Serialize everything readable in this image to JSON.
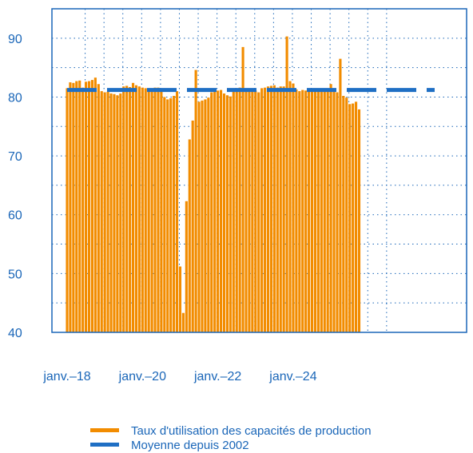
{
  "chart_data": {
    "type": "bar",
    "title": "",
    "xlabel": "",
    "ylabel": "",
    "ylim": [
      40,
      95
    ],
    "yticks": [
      40,
      50,
      60,
      70,
      80,
      90
    ],
    "x_start": "2018-01",
    "x_tick_labels": [
      "janv.–18",
      "janv.–20",
      "janv.–22",
      "janv.–24"
    ],
    "grid": true,
    "legend_position": "bottom",
    "series": [
      {
        "name": "Taux d'utilisation des capacités de production",
        "type": "bar",
        "color": "#f28c00",
        "values": [
          81.5,
          82.5,
          82.4,
          82.7,
          82.8,
          81.6,
          82.6,
          82.7,
          82.9,
          83.3,
          82.2,
          81.0,
          80.8,
          80.9,
          80.6,
          80.5,
          80.3,
          80.6,
          81.8,
          81.9,
          81.7,
          82.4,
          82.0,
          81.8,
          81.6,
          81.5,
          81.2,
          81.4,
          81.6,
          81.6,
          81.3,
          80.0,
          79.6,
          79.8,
          80.2,
          81.0,
          51.2,
          43.3,
          62.3,
          72.8,
          76.0,
          84.6,
          79.2,
          79.4,
          79.6,
          79.9,
          80.8,
          81.0,
          81.1,
          81.2,
          80.6,
          80.3,
          80.1,
          81.2,
          81.4,
          81.6,
          88.5,
          81.4,
          81.3,
          81.2,
          81.1,
          80.8,
          81.5,
          81.6,
          81.8,
          81.9,
          82.0,
          81.6,
          81.8,
          81.8,
          90.3,
          82.7,
          82.3,
          81.3,
          81.0,
          81.2,
          81.1,
          81.3,
          81.4,
          81.2,
          81.0,
          81.1,
          81.0,
          81.2,
          82.2,
          81.0,
          80.8,
          86.5,
          80.2,
          79.9,
          78.8,
          78.9,
          79.2,
          77.9
        ]
      },
      {
        "name": "Moyenne depuis 2002",
        "type": "line",
        "style": "dashed",
        "color": "#1f6fc4",
        "value": 81.2
      }
    ]
  }
}
